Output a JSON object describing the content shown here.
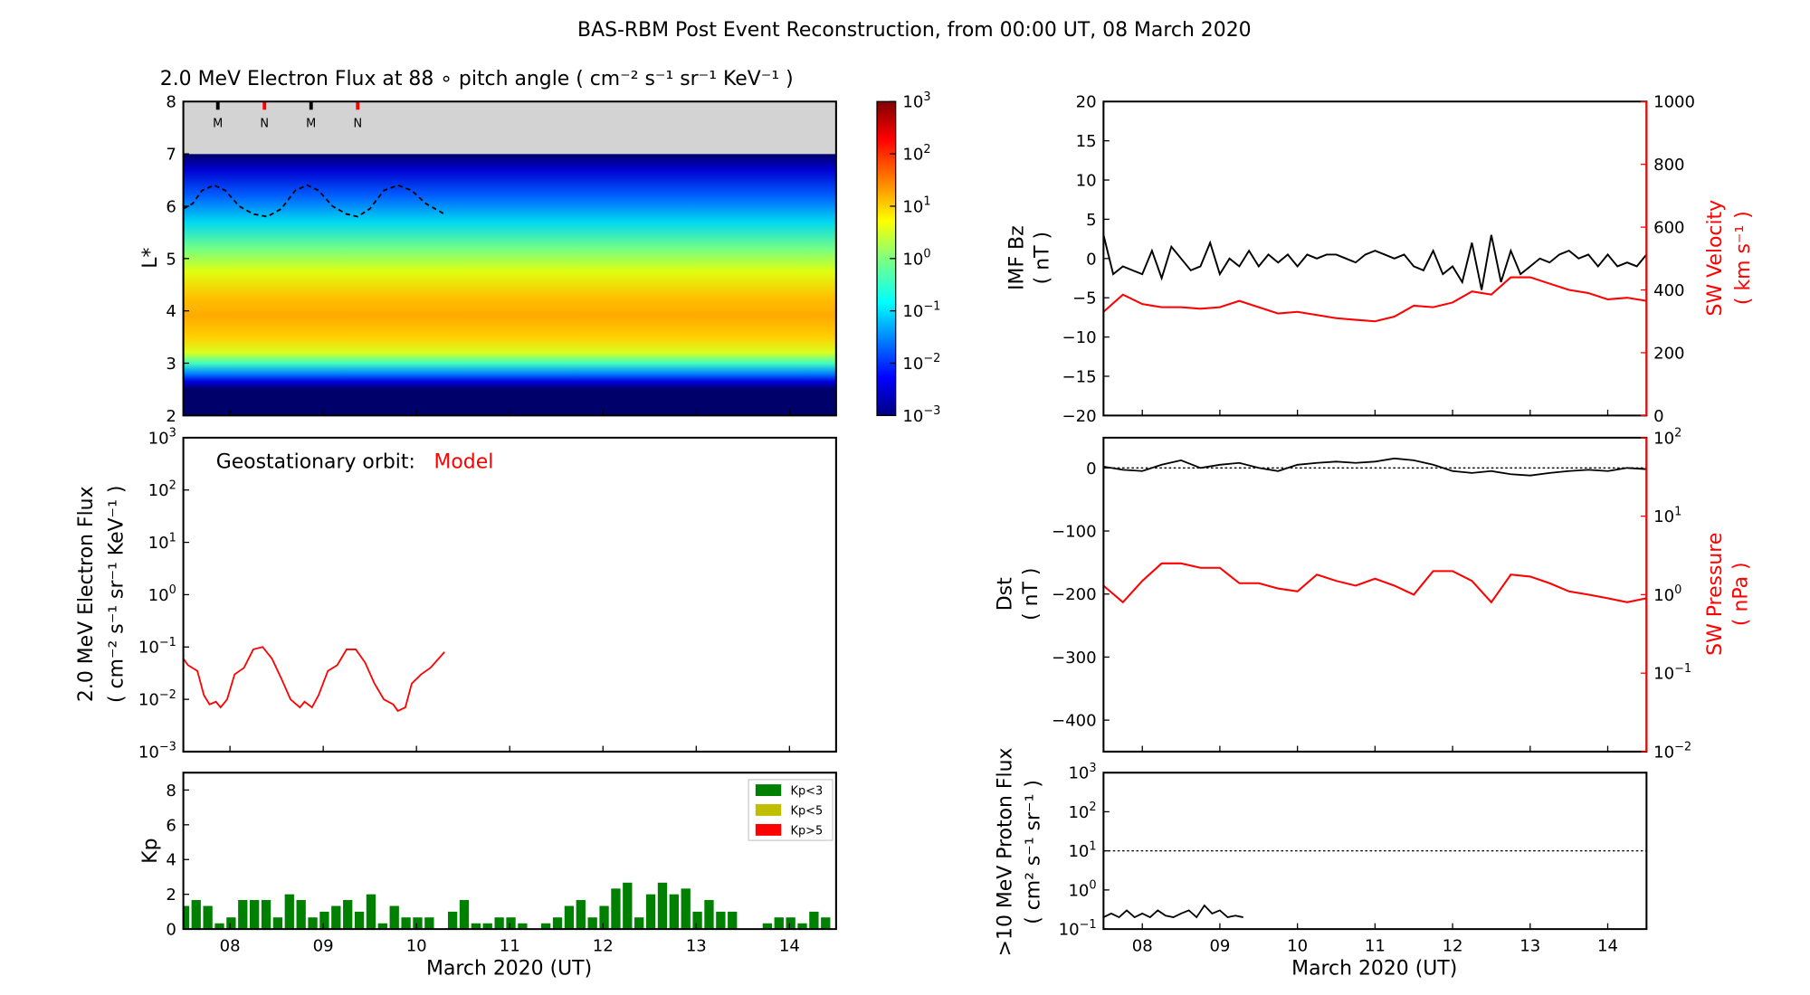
{
  "title": "BAS-RBM Post Event Reconstruction, from 00:00 UT, 08 March 2020",
  "colors": {
    "black": "#000000",
    "red": "#ff0000",
    "kp_low": "#008000",
    "kp_mid": "#bfbf00",
    "kp_high": "#ff0000",
    "gray": "#d3d3d3"
  },
  "x_axis": {
    "range": [
      7.5,
      14.5
    ],
    "ticks": [
      8,
      9,
      10,
      11,
      12,
      13,
      14
    ],
    "tick_labels": [
      "08",
      "09",
      "10",
      "11",
      "12",
      "13",
      "14"
    ],
    "label": "March 2020 (UT)"
  },
  "chart_data": [
    {
      "type": "heatmap",
      "id": "lstar_spectrogram",
      "title": "2.0 MeV Electron Flux at 88 ∘  pitch angle ( cm⁻² s⁻¹ sr⁻¹ KeV⁻¹ )",
      "ylabel": "L*",
      "ylim": [
        2,
        8
      ],
      "yticks": [
        2,
        3,
        4,
        5,
        6,
        7,
        8
      ],
      "colorbar": {
        "scale": "log",
        "range_exp": [
          -3,
          3
        ],
        "tick_exps": [
          -3,
          -2,
          -1,
          0,
          1,
          2,
          3
        ]
      },
      "no_data_above_L": 7,
      "markers": [
        {
          "x": 7.87,
          "label": "M",
          "color": "#000000"
        },
        {
          "x": 8.37,
          "label": "N",
          "color": "#ff0000"
        },
        {
          "x": 8.87,
          "label": "M",
          "color": "#000000"
        },
        {
          "x": 9.37,
          "label": "N",
          "color": "#ff0000"
        }
      ],
      "geo_lstar": {
        "x": [
          7.5,
          7.6,
          7.7,
          7.83,
          7.95,
          8.1,
          8.25,
          8.4,
          8.55,
          8.7,
          8.83,
          8.95,
          9.1,
          9.25,
          9.37,
          9.5,
          9.65,
          9.8,
          9.95,
          10.1,
          10.3
        ],
        "y": [
          5.95,
          6.05,
          6.3,
          6.4,
          6.3,
          6.0,
          5.85,
          5.8,
          5.95,
          6.3,
          6.4,
          6.3,
          6.0,
          5.85,
          5.8,
          5.95,
          6.3,
          6.4,
          6.3,
          6.05,
          5.85
        ]
      }
    },
    {
      "type": "line",
      "id": "geo_electron_flux",
      "annotation": "Geostationary orbit:",
      "annotation_model": "Model",
      "ylabel": "2.0 MeV Electron Flux",
      "ylabel_units": "( cm⁻² s⁻¹ sr⁻¹ KeV⁻¹ )",
      "yscale": "log",
      "ylim_exp": [
        -3,
        3
      ],
      "ytick_exps": [
        -3,
        -2,
        -1,
        0,
        1,
        2,
        3
      ],
      "x": [
        7.5,
        7.55,
        7.65,
        7.72,
        7.78,
        7.85,
        7.9,
        7.97,
        8.05,
        8.15,
        8.25,
        8.35,
        8.45,
        8.55,
        8.65,
        8.75,
        8.8,
        8.88,
        8.95,
        9.05,
        9.15,
        9.25,
        9.35,
        9.45,
        9.55,
        9.65,
        9.75,
        9.8,
        9.88,
        9.95,
        10.05,
        10.15,
        10.3
      ],
      "y": [
        0.06,
        0.045,
        0.035,
        0.012,
        0.008,
        0.009,
        0.007,
        0.01,
        0.03,
        0.04,
        0.09,
        0.1,
        0.06,
        0.025,
        0.01,
        0.007,
        0.009,
        0.007,
        0.012,
        0.035,
        0.045,
        0.09,
        0.09,
        0.05,
        0.02,
        0.01,
        0.008,
        0.006,
        0.007,
        0.02,
        0.03,
        0.04,
        0.08
      ]
    },
    {
      "type": "bar",
      "id": "kp_index",
      "ylabel": "Kp",
      "ylim": [
        0,
        9
      ],
      "yticks": [
        0,
        2,
        4,
        6,
        8
      ],
      "bin_start": 7.5,
      "bin_days": 0.125,
      "legend": [
        {
          "label": "Kp<3",
          "color": "#008000"
        },
        {
          "label": "Kp<5",
          "color": "#bfbf00"
        },
        {
          "label": "Kp>5",
          "color": "#ff0000"
        }
      ],
      "legend_position": "top-right",
      "values": [
        1.33,
        1.67,
        1.33,
        0.33,
        0.67,
        1.67,
        1.67,
        1.67,
        0.67,
        2.0,
        1.67,
        0.67,
        1.0,
        1.33,
        1.67,
        1.0,
        2.0,
        0.33,
        1.33,
        0.67,
        0.67,
        0.67,
        0,
        1.0,
        1.67,
        0.33,
        0.33,
        0.67,
        0.67,
        0.33,
        0,
        0.33,
        0.67,
        1.33,
        1.67,
        0.67,
        1.33,
        2.33,
        2.67,
        0.67,
        2.0,
        2.67,
        2.0,
        2.33,
        1.0,
        1.67,
        1.0,
        1.0,
        0,
        0,
        0.33,
        0.67,
        0.67,
        0.33,
        1.0,
        0.67
      ]
    },
    {
      "type": "line",
      "id": "imf_bz_sw_velocity",
      "ylabel": "IMF Bz",
      "ylabel_units": "( nT )",
      "ylim": [
        -20,
        20
      ],
      "yticks": [
        -20,
        -15,
        -10,
        -5,
        0,
        5,
        10,
        15,
        20
      ],
      "bz": {
        "x_start": 7.5,
        "x_step": 0.125,
        "values": [
          3,
          -2,
          -1,
          -1.5,
          -2,
          1,
          -2.5,
          1.5,
          0,
          -1.5,
          -1,
          2,
          -2,
          0,
          -1,
          1,
          -1,
          0.5,
          -0.5,
          0.5,
          -1,
          0.5,
          0,
          0.5,
          0.5,
          0,
          -0.5,
          0.5,
          1,
          0.5,
          0,
          0.5,
          -1,
          -1.5,
          1,
          -2,
          -1,
          -3,
          2,
          -4,
          3,
          -3,
          1,
          -2,
          -1,
          0,
          -0.5,
          0.5,
          1,
          0,
          0.5,
          -1,
          0.5,
          -1,
          -0.5,
          -1,
          0.5
        ]
      },
      "y2label": "SW Velocity",
      "y2label_units": "( km s⁻¹ )",
      "y2lim": [
        0,
        1000
      ],
      "y2ticks": [
        0,
        200,
        400,
        600,
        800,
        1000
      ],
      "velocity": {
        "x_start": 7.5,
        "x_step": 0.25,
        "values": [
          330,
          385,
          355,
          345,
          345,
          340,
          345,
          365,
          345,
          325,
          330,
          320,
          310,
          305,
          300,
          315,
          350,
          345,
          360,
          395,
          385,
          440,
          440,
          420,
          400,
          390,
          370,
          375,
          365
        ]
      }
    },
    {
      "type": "line",
      "id": "dst_sw_pressure",
      "ylabel": "Dst",
      "ylabel_units": "( nT )",
      "ylim": [
        -450,
        48
      ],
      "yticks": [
        0,
        -100,
        -200,
        -300,
        -400
      ],
      "dst": {
        "x_start": 7.5,
        "x_step": 0.25,
        "values": [
          2,
          -3,
          -5,
          5,
          12,
          0,
          5,
          8,
          0,
          -5,
          5,
          8,
          10,
          8,
          10,
          15,
          12,
          5,
          -5,
          -8,
          -5,
          -10,
          -12,
          -8,
          -5,
          -3,
          -5,
          0,
          -2
        ]
      },
      "y2label": "SW Pressure",
      "y2label_units": "( nPa )",
      "y2scale": "log",
      "y2lim_exp": [
        -2,
        2
      ],
      "y2tick_exps": [
        -2,
        -1,
        0,
        1,
        2
      ],
      "pressure": {
        "x_start": 7.5,
        "x_step": 0.25,
        "values": [
          1.3,
          0.8,
          1.5,
          2.5,
          2.5,
          2.2,
          2.2,
          1.4,
          1.4,
          1.2,
          1.1,
          1.8,
          1.5,
          1.3,
          1.6,
          1.3,
          1.0,
          2.0,
          2.0,
          1.5,
          0.8,
          1.8,
          1.7,
          1.4,
          1.1,
          1.0,
          0.9,
          0.8,
          0.9
        ]
      }
    },
    {
      "type": "line",
      "id": "proton_flux",
      "ylabel": ">10 MeV Proton Flux",
      "ylabel_units": "( cm² s⁻¹ sr⁻¹ )",
      "yscale": "log",
      "ylim_exp": [
        -1,
        3
      ],
      "ytick_exps": [
        -1,
        0,
        1,
        2,
        3
      ],
      "threshold": 10,
      "flux": {
        "x_start": 7.5,
        "x_step": 0.1,
        "values": [
          0.2,
          0.25,
          0.2,
          0.3,
          0.2,
          0.25,
          0.2,
          0.3,
          0.22,
          0.2,
          0.25,
          0.3,
          0.2,
          0.4,
          0.25,
          0.3,
          0.2,
          0.22,
          0.2
        ]
      }
    }
  ]
}
